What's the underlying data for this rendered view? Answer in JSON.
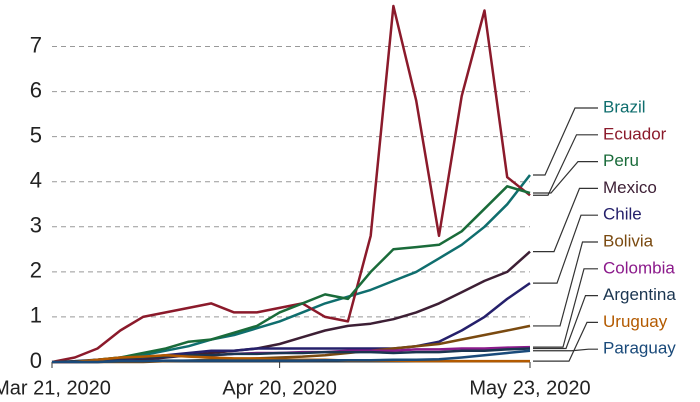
{
  "chart_data": {
    "type": "line",
    "x": [
      "2020-03-21",
      "2020-03-24",
      "2020-03-27",
      "2020-03-30",
      "2020-04-02",
      "2020-04-05",
      "2020-04-08",
      "2020-04-11",
      "2020-04-14",
      "2020-04-17",
      "2020-04-20",
      "2020-04-23",
      "2020-04-26",
      "2020-04-29",
      "2020-05-02",
      "2020-05-05",
      "2020-05-08",
      "2020-05-11",
      "2020-05-14",
      "2020-05-17",
      "2020-05-20",
      "2020-05-23"
    ],
    "xticks": [
      {
        "value": "2020-03-21",
        "label": "Mar 21, 2020"
      },
      {
        "value": "2020-04-20",
        "label": "Apr 20, 2020"
      },
      {
        "value": "2020-05-23",
        "label": "May 23, 2020"
      }
    ],
    "ylim": [
      0,
      7.9
    ],
    "yticks": [
      0,
      1,
      2,
      3,
      4,
      5,
      6,
      7
    ],
    "grid": true,
    "series": [
      {
        "name": "Brazil",
        "color": "#0f6e6e",
        "values": [
          0,
          0,
          0.05,
          0.1,
          0.15,
          0.25,
          0.35,
          0.5,
          0.6,
          0.75,
          0.9,
          1.1,
          1.3,
          1.45,
          1.6,
          1.8,
          2.0,
          2.3,
          2.6,
          3.0,
          3.5,
          4.15
        ]
      },
      {
        "name": "Ecuador",
        "color": "#8b1a2b",
        "values": [
          0,
          0.1,
          0.3,
          0.7,
          1.0,
          1.1,
          1.2,
          1.3,
          1.1,
          1.1,
          1.2,
          1.3,
          1.0,
          0.9,
          2.8,
          7.9,
          5.8,
          2.8,
          5.9,
          7.8,
          4.1,
          3.7
        ]
      },
      {
        "name": "Peru",
        "color": "#1a6b3a",
        "values": [
          0,
          0,
          0.05,
          0.1,
          0.2,
          0.3,
          0.45,
          0.5,
          0.65,
          0.8,
          1.1,
          1.3,
          1.5,
          1.4,
          2.0,
          2.5,
          2.55,
          2.6,
          2.9,
          3.4,
          3.9,
          3.75
        ]
      },
      {
        "name": "Mexico",
        "color": "#3d1f35",
        "values": [
          0,
          0,
          0,
          0.02,
          0.05,
          0.1,
          0.15,
          0.2,
          0.25,
          0.3,
          0.4,
          0.55,
          0.7,
          0.8,
          0.85,
          0.95,
          1.1,
          1.3,
          1.55,
          1.8,
          2.0,
          2.45
        ]
      },
      {
        "name": "Chile",
        "color": "#25206b",
        "values": [
          0,
          0,
          0,
          0.05,
          0.1,
          0.15,
          0.2,
          0.25,
          0.25,
          0.3,
          0.3,
          0.3,
          0.3,
          0.3,
          0.3,
          0.3,
          0.35,
          0.45,
          0.7,
          1.0,
          1.4,
          1.75
        ]
      },
      {
        "name": "Bolivia",
        "color": "#7a4a10",
        "values": [
          0,
          0,
          0,
          0,
          0,
          0.02,
          0.03,
          0.05,
          0.05,
          0.08,
          0.1,
          0.12,
          0.15,
          0.2,
          0.25,
          0.3,
          0.35,
          0.4,
          0.5,
          0.6,
          0.7,
          0.8
        ]
      },
      {
        "name": "Colombia",
        "color": "#8b1a8b",
        "values": [
          0,
          0,
          0.05,
          0.08,
          0.1,
          0.12,
          0.15,
          0.15,
          0.18,
          0.2,
          0.2,
          0.22,
          0.22,
          0.25,
          0.25,
          0.25,
          0.28,
          0.28,
          0.3,
          0.3,
          0.32,
          0.33
        ]
      },
      {
        "name": "Argentina",
        "color": "#1a3550",
        "values": [
          0,
          0.02,
          0.05,
          0.08,
          0.1,
          0.12,
          0.15,
          0.15,
          0.18,
          0.18,
          0.2,
          0.2,
          0.22,
          0.22,
          0.22,
          0.2,
          0.22,
          0.22,
          0.25,
          0.25,
          0.28,
          0.3
        ]
      },
      {
        "name": "Uruguay",
        "color": "#b35a00",
        "values": [
          0,
          0,
          0.05,
          0.1,
          0.12,
          0.15,
          0.12,
          0.1,
          0.08,
          0.08,
          0.05,
          0.05,
          0.05,
          0.03,
          0.03,
          0.03,
          0.02,
          0.02,
          0.02,
          0.02,
          0.02,
          0.02
        ]
      },
      {
        "name": "Paraguay",
        "color": "#1a4a7a",
        "values": [
          0,
          0,
          0,
          0.02,
          0.02,
          0.03,
          0.03,
          0.03,
          0.03,
          0.03,
          0.03,
          0.03,
          0.04,
          0.04,
          0.04,
          0.05,
          0.05,
          0.06,
          0.1,
          0.15,
          0.2,
          0.25
        ]
      }
    ]
  }
}
